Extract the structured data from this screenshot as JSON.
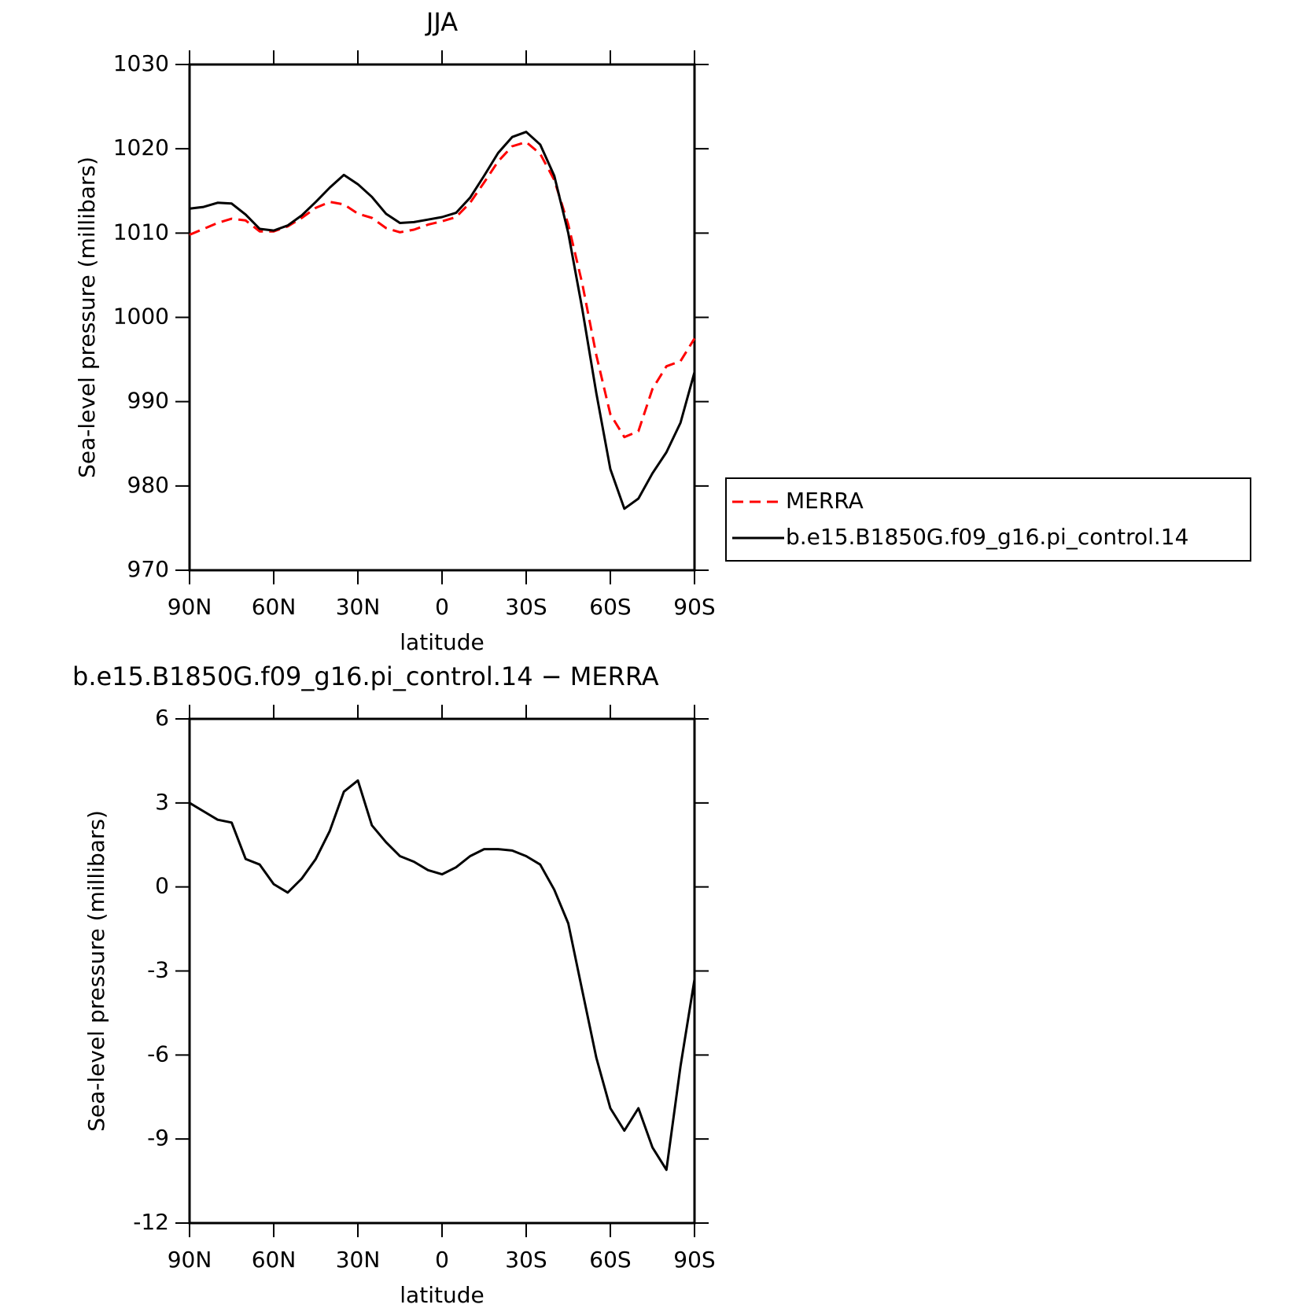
{
  "chart_data": [
    {
      "type": "line",
      "title": "JJA",
      "xlabel": "latitude",
      "ylabel": "Sea-level pressure (millibars)",
      "x": [
        90,
        85,
        80,
        75,
        70,
        65,
        60,
        55,
        50,
        45,
        40,
        35,
        30,
        25,
        20,
        15,
        10,
        5,
        0,
        -5,
        -10,
        -15,
        -20,
        -25,
        -30,
        -35,
        -40,
        -45,
        -50,
        -55,
        -60,
        -65,
        -70,
        -75,
        -80,
        -85,
        -90
      ],
      "xlim": [
        90,
        -90
      ],
      "xticks": [
        {
          "value": 90,
          "label": "90N"
        },
        {
          "value": 60,
          "label": "60N"
        },
        {
          "value": 30,
          "label": "30N"
        },
        0,
        {
          "value": -30,
          "label": "30S"
        },
        {
          "value": -60,
          "label": "60S"
        },
        {
          "value": -90,
          "label": "90S"
        }
      ],
      "ylim": [
        970,
        1030
      ],
      "yticks": [
        970,
        980,
        990,
        1000,
        1010,
        1020,
        1030
      ],
      "legend": "right",
      "series": [
        {
          "name": "MERRA",
          "color": "#ff0000",
          "dashed": true,
          "values": [
            1009.8,
            1010.5,
            1011.2,
            1011.7,
            1011.5,
            1010.2,
            1010.2,
            1010.8,
            1011.8,
            1013.0,
            1013.7,
            1013.4,
            1012.3,
            1011.8,
            1010.6,
            1010.1,
            1010.4,
            1011.0,
            1011.4,
            1011.9,
            1013.6,
            1016.0,
            1018.5,
            1020.3,
            1020.8,
            1019.4,
            1016.3,
            1011.0,
            1004.0,
            995.5,
            988.5,
            985.8,
            986.5,
            991.5,
            994.2,
            994.8,
            997.5
          ]
        },
        {
          "name": "b.e15.B1850G.f09_g16.pi_control.14",
          "color": "#000000",
          "dashed": false,
          "values": [
            1012.9,
            1013.1,
            1013.6,
            1013.5,
            1012.2,
            1010.5,
            1010.3,
            1010.9,
            1012.1,
            1013.7,
            1015.4,
            1016.9,
            1015.8,
            1014.3,
            1012.3,
            1011.2,
            1011.3,
            1011.6,
            1011.9,
            1012.4,
            1014.2,
            1016.8,
            1019.5,
            1021.4,
            1022.0,
            1020.5,
            1016.8,
            1010.0,
            1001.0,
            991.0,
            982.0,
            977.3,
            978.5,
            981.5,
            984.0,
            987.5,
            993.5
          ]
        }
      ]
    },
    {
      "type": "line",
      "title": "b.e15.B1850G.f09_g16.pi_control.14 − MERRA",
      "xlabel": "latitude",
      "ylabel": "Sea-level pressure (millibars)",
      "x": [
        90,
        85,
        80,
        75,
        70,
        65,
        60,
        55,
        50,
        45,
        40,
        35,
        30,
        25,
        20,
        15,
        10,
        5,
        0,
        -5,
        -10,
        -15,
        -20,
        -25,
        -30,
        -35,
        -40,
        -45,
        -50,
        -55,
        -60,
        -65,
        -70,
        -75,
        -80,
        -85,
        -90
      ],
      "xlim": [
        90,
        -90
      ],
      "xticks": [
        {
          "value": 90,
          "label": "90N"
        },
        {
          "value": 60,
          "label": "60N"
        },
        {
          "value": 30,
          "label": "30N"
        },
        0,
        {
          "value": -30,
          "label": "30S"
        },
        {
          "value": -60,
          "label": "60S"
        },
        {
          "value": -90,
          "label": "90S"
        }
      ],
      "ylim": [
        -12,
        6
      ],
      "yticks": [
        -12,
        -9,
        -6,
        -3,
        0,
        3,
        6
      ],
      "series": [
        {
          "color": "#000000",
          "dashed": false,
          "values": [
            3.0,
            2.7,
            2.4,
            2.3,
            1.0,
            0.8,
            0.1,
            -0.2,
            0.3,
            1.0,
            2.0,
            3.4,
            3.8,
            2.2,
            1.6,
            1.1,
            0.9,
            0.6,
            0.45,
            0.7,
            1.1,
            1.35,
            1.35,
            1.3,
            1.1,
            0.8,
            -0.1,
            -1.3,
            -3.7,
            -6.1,
            -7.9,
            -8.7,
            -7.9,
            -9.3,
            -10.1,
            -6.4,
            -3.3
          ]
        }
      ]
    }
  ]
}
